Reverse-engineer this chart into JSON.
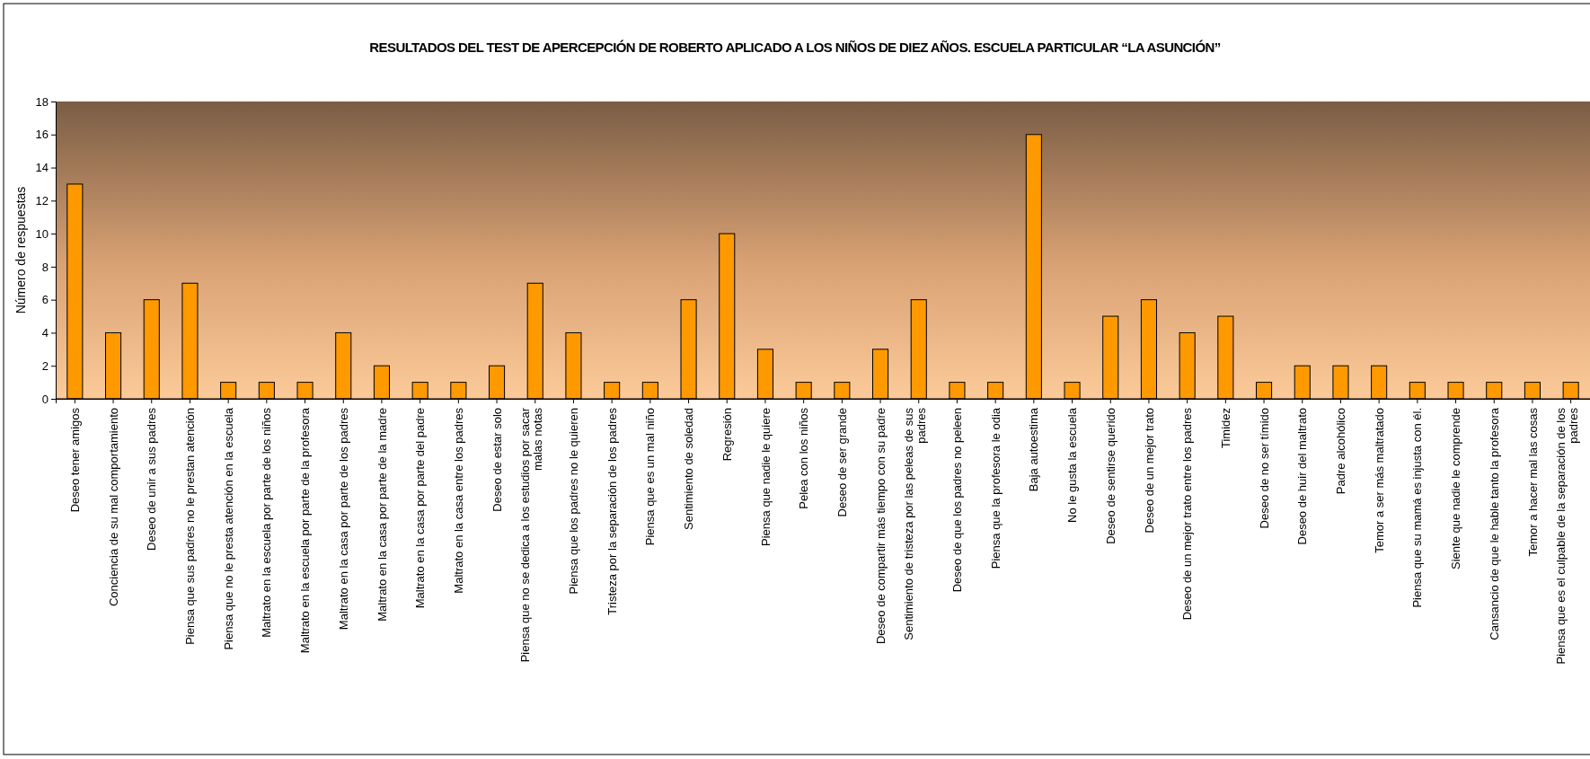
{
  "chart_data": {
    "type": "bar",
    "title": "RESULTADOS DEL TEST DE APERCEPCIÓN DE ROBERTO APLICADO A LOS NIÑOS DE DIEZ AÑOS. ESCUELA PARTICULAR “LA ASUNCIÓN”",
    "ylabel": "Número de respuestas",
    "categories": [
      "Deseo tener amigos",
      "Conciencia de su mal comportamiento",
      "Deseo de unir a sus padres",
      "Piensa que sus padres no le prestan atención",
      "Piensa que no le presta atención en la escuela",
      "Maltrato en la escuela por parte de los niños",
      "Maltrato en la escuela por parte de la profesora",
      "Maltrato en la casa por parte de los padres",
      "Maltrato en la casa por parte de la madre",
      "Maltrato en la casa por parte del padre",
      "Maltrato en la casa entre los padres",
      "Deseo de estar solo",
      "Piensa que no se dedica a los estudios por sacar malas notas",
      "Piensa que los padres no le quieren",
      "Tristeza por la separación de los padres",
      "Piensa que es un mal niño",
      "Sentimiento de soledad",
      "Regresión",
      "Piensa que nadie le quiere",
      "Pelea con los niños",
      "Deseo de ser grande",
      "Deseo de compartir más tiempo con su padre",
      "Sentimiento de tristeza por las peleas de sus padres",
      "Deseo de que los padres no peleen",
      "Piensa que la profesora le odia",
      "Baja autoestima",
      "No le gusta la escuela",
      "Deseo de sentirse querido",
      "Deseo de un mejor trato",
      "Deseo de un mejor trato entre los padres",
      "Timidez",
      "Deseo de no ser tímido",
      "Deseo de huir del maltrato",
      "Padre alcohólico",
      "Temor a ser  más maltratado",
      "Piensa que su mamá es injusta con él.",
      "Siente que nadie le comprende",
      "Cansancio de que le hable tanto la profesora",
      "Temor a hacer mal las cosas",
      "Piensa que es el culpable de la separación de los padres"
    ],
    "values": [
      13,
      4,
      6,
      7,
      1,
      1,
      1,
      4,
      2,
      1,
      1,
      2,
      7,
      4,
      1,
      1,
      6,
      10,
      3,
      1,
      1,
      3,
      6,
      1,
      1,
      16,
      1,
      5,
      6,
      4,
      5,
      1,
      2,
      2,
      2,
      1,
      1,
      1,
      1,
      1
    ],
    "color": "#ff9900",
    "ylim": [
      0,
      18
    ],
    "yticks": [
      0,
      2,
      4,
      6,
      8,
      10,
      12,
      14,
      16,
      18
    ],
    "grid": false
  }
}
